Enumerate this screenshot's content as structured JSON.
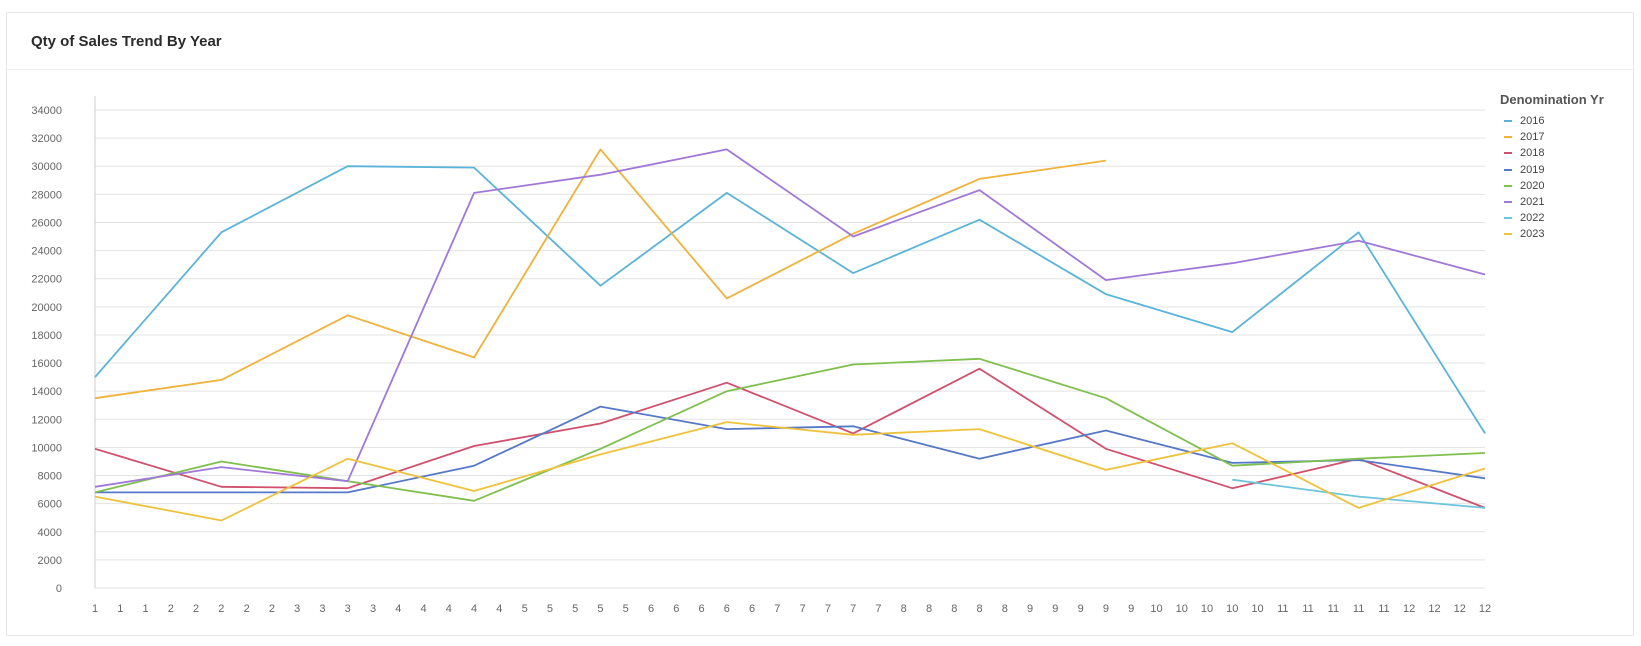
{
  "card": {
    "title": "Qty of Sales Trend By Year"
  },
  "legend": {
    "title": "Denomination Yr"
  },
  "chart_data": {
    "type": "line",
    "title": "Qty of Sales Trend By Year",
    "xlabel": "",
    "ylabel": "",
    "ylim": [
      0,
      34000
    ],
    "yticks": [
      0,
      2000,
      4000,
      6000,
      8000,
      10000,
      12000,
      14000,
      16000,
      18000,
      20000,
      22000,
      24000,
      26000,
      28000,
      30000,
      32000,
      34000
    ],
    "x": [
      "1",
      "1",
      "1",
      "2",
      "2",
      "2",
      "2",
      "2",
      "3",
      "3",
      "3",
      "3",
      "4",
      "4",
      "4",
      "4",
      "4",
      "5",
      "5",
      "5",
      "5",
      "5",
      "6",
      "6",
      "6",
      "6",
      "6",
      "7",
      "7",
      "7",
      "7",
      "7",
      "8",
      "8",
      "8",
      "8",
      "8",
      "9",
      "9",
      "9",
      "9",
      "9",
      "10",
      "10",
      "10",
      "10",
      "10",
      "11",
      "11",
      "11",
      "11",
      "11",
      "12",
      "12",
      "12",
      "12"
    ],
    "grid": true,
    "legend_position": "right",
    "series": [
      {
        "name": "2016",
        "color": "#5ab4d9",
        "x": [
          0,
          5,
          10,
          15,
          20,
          25,
          30,
          35,
          40,
          45,
          50,
          55
        ],
        "values": [
          15000,
          25300,
          30000,
          29900,
          21500,
          28100,
          22400,
          26200,
          20900,
          18200,
          25300,
          11000
        ]
      },
      {
        "name": "2017",
        "color": "#f0b23a",
        "x": [
          0,
          5,
          10,
          15,
          20,
          25,
          30,
          35,
          40
        ],
        "values": [
          13500,
          14800,
          19400,
          16400,
          31200,
          20600,
          25200,
          29100,
          30400
        ]
      },
      {
        "name": "2018",
        "color": "#d1506e",
        "x": [
          0,
          5,
          10,
          15,
          20,
          25,
          30,
          35,
          40,
          45,
          50,
          55
        ],
        "values": [
          9900,
          7200,
          7100,
          10100,
          11700,
          14600,
          11000,
          15600,
          9900,
          7100,
          9200,
          5700
        ]
      },
      {
        "name": "2019",
        "color": "#5678c8",
        "x": [
          0,
          5,
          10,
          15,
          20,
          25,
          30,
          35,
          40,
          45,
          50,
          55
        ],
        "values": [
          6800,
          6800,
          6800,
          8700,
          12900,
          11300,
          11500,
          9200,
          11200,
          8900,
          9100,
          7800
        ]
      },
      {
        "name": "2020",
        "color": "#7fbf4d",
        "x": [
          0,
          5,
          10,
          15,
          20,
          25,
          30,
          35,
          40,
          45,
          50,
          55
        ],
        "values": [
          6800,
          9000,
          7600,
          6200,
          9900,
          14000,
          15900,
          16300,
          13500,
          8700,
          9200,
          9600
        ]
      },
      {
        "name": "2021",
        "color": "#a078d8",
        "x": [
          0,
          5,
          10,
          15,
          20,
          25,
          30,
          35,
          40,
          45,
          50,
          55
        ],
        "values": [
          7200,
          8600,
          7600,
          28100,
          29400,
          31200,
          25000,
          28300,
          21900,
          23100,
          24700,
          22300
        ]
      },
      {
        "name": "2022",
        "color": "#6cc5dc",
        "x": [
          45,
          50,
          55
        ],
        "values": [
          7700,
          6500,
          5700
        ]
      },
      {
        "name": "2023",
        "color": "#eec23a",
        "x": [
          0,
          5,
          10,
          15,
          20,
          25,
          30,
          35,
          40,
          45,
          50,
          55
        ],
        "values": [
          6500,
          4800,
          9200,
          6900,
          9500,
          11800,
          10900,
          11300,
          8400,
          10300,
          5700,
          8500
        ]
      }
    ]
  }
}
